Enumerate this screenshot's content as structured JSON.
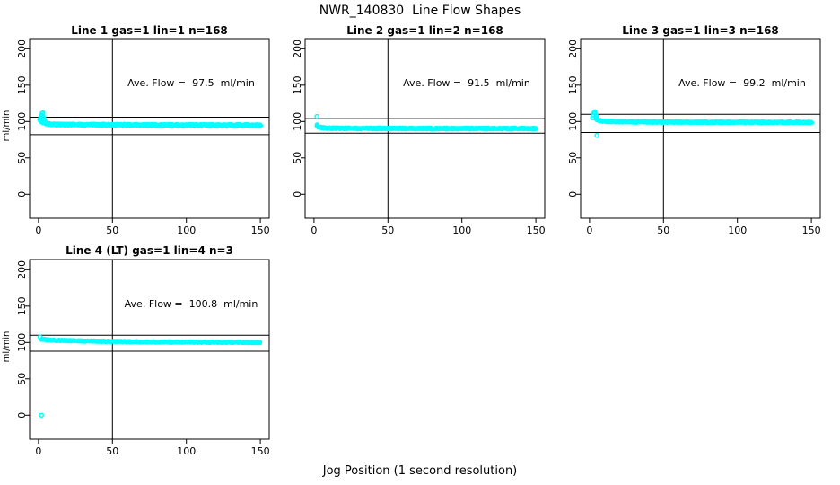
{
  "page_title": "NWR_140830  Line Flow Shapes",
  "bottom_axis_label": "Jog Position (1 second resolution)",
  "point_color": "#00ffff",
  "line_color": "#000000",
  "background_color": "#ffffff",
  "chart_data": [
    {
      "type": "scatter",
      "title": "Line 1 gas=1 lin=1 n=168",
      "ylabel": "ml/min",
      "annotation": "Ave. Flow =  97.5  ml/min",
      "ave_flow_ml_min": 97.5,
      "gas": 1,
      "lin": 1,
      "n": 168,
      "xticks": [
        0,
        50,
        100,
        150
      ],
      "yticks": [
        0,
        50,
        100,
        150,
        200
      ],
      "xlim": [
        0,
        150
      ],
      "ylim": [
        0,
        200
      ],
      "vline_x": 50,
      "hlines_y": [
        106,
        82
      ],
      "band": {
        "x_start": 1,
        "x_end": 150,
        "halfwidth": 1.3,
        "passes": 4,
        "anchors": [
          [
            1,
            102
          ],
          [
            2,
            100
          ],
          [
            3,
            98.5
          ],
          [
            5,
            97
          ],
          [
            8,
            96.3
          ],
          [
            15,
            95.8
          ],
          [
            40,
            95.5
          ],
          [
            90,
            95.2
          ],
          [
            150,
            95
          ]
        ]
      },
      "head_points": [
        [
          1,
          103
        ],
        [
          1.5,
          106
        ],
        [
          2,
          109
        ],
        [
          2.5,
          111.5
        ],
        [
          3,
          112
        ],
        [
          3,
          108
        ],
        [
          3.5,
          105
        ],
        [
          4,
          102
        ],
        [
          4.5,
          100
        ]
      ],
      "outliers": []
    },
    {
      "type": "scatter",
      "title": "Line 2 gas=1 lin=2 n=168",
      "ylabel": "",
      "annotation": "Ave. Flow =  91.5  ml/min",
      "ave_flow_ml_min": 91.5,
      "gas": 1,
      "lin": 2,
      "n": 168,
      "xticks": [
        0,
        50,
        100,
        150
      ],
      "yticks": [
        0,
        50,
        100,
        150,
        200
      ],
      "xlim": [
        0,
        150
      ],
      "ylim": [
        0,
        200
      ],
      "vline_x": 50,
      "hlines_y": [
        104,
        84
      ],
      "band": {
        "x_start": 2,
        "x_end": 150,
        "halfwidth": 1.2,
        "passes": 4,
        "anchors": [
          [
            2,
            95
          ],
          [
            3,
            92.5
          ],
          [
            5,
            91.3
          ],
          [
            10,
            90.8
          ],
          [
            30,
            90.5
          ],
          [
            150,
            90.3
          ]
        ]
      },
      "head_points": [
        [
          2,
          107
        ]
      ],
      "outliers": []
    },
    {
      "type": "scatter",
      "title": "Line 3 gas=1 lin=3 n=168",
      "ylabel": "",
      "annotation": "Ave. Flow =  99.2  ml/min",
      "ave_flow_ml_min": 99.2,
      "gas": 1,
      "lin": 3,
      "n": 168,
      "xticks": [
        0,
        50,
        100,
        150
      ],
      "yticks": [
        0,
        50,
        100,
        150,
        200
      ],
      "xlim": [
        0,
        150
      ],
      "ylim": [
        0,
        200
      ],
      "vline_x": 50,
      "hlines_y": [
        110,
        85
      ],
      "band": {
        "x_start": 4,
        "x_end": 150,
        "halfwidth": 1.0,
        "passes": 4,
        "anchors": [
          [
            4,
            103.5
          ],
          [
            6,
            101.5
          ],
          [
            10,
            100.3
          ],
          [
            20,
            99.6
          ],
          [
            50,
            99.2
          ],
          [
            150,
            98.8
          ]
        ]
      },
      "head_points": [
        [
          2,
          105
        ],
        [
          2.5,
          109
        ],
        [
          3,
          112
        ],
        [
          3.5,
          113.5
        ],
        [
          4,
          111
        ],
        [
          4.5,
          108
        ],
        [
          5,
          104.5
        ]
      ],
      "outliers": [
        [
          5,
          81
        ]
      ]
    },
    {
      "type": "scatter",
      "title": "Line 4 (LT) gas=1 lin=4 n=3",
      "ylabel": "ml/min",
      "annotation": "Ave. Flow =  100.8  ml/min",
      "ave_flow_ml_min": 100.8,
      "gas": 1,
      "lin": 4,
      "n": 3,
      "xticks": [
        0,
        50,
        100,
        150
      ],
      "yticks": [
        0,
        50,
        100,
        150,
        200
      ],
      "xlim": [
        0,
        150
      ],
      "ylim": [
        0,
        200
      ],
      "vline_x": 50,
      "hlines_y": [
        110,
        88
      ],
      "band": {
        "x_start": 2,
        "x_end": 150,
        "halfwidth": 0.9,
        "passes": 3,
        "anchors": [
          [
            2,
            104.5
          ],
          [
            5,
            103.6
          ],
          [
            15,
            102.8
          ],
          [
            35,
            101.8
          ],
          [
            70,
            100.9
          ],
          [
            110,
            100.4
          ],
          [
            150,
            100
          ]
        ]
      },
      "head_points": [
        [
          1,
          107.5
        ]
      ],
      "outliers": [
        [
          2,
          0
        ]
      ]
    }
  ]
}
